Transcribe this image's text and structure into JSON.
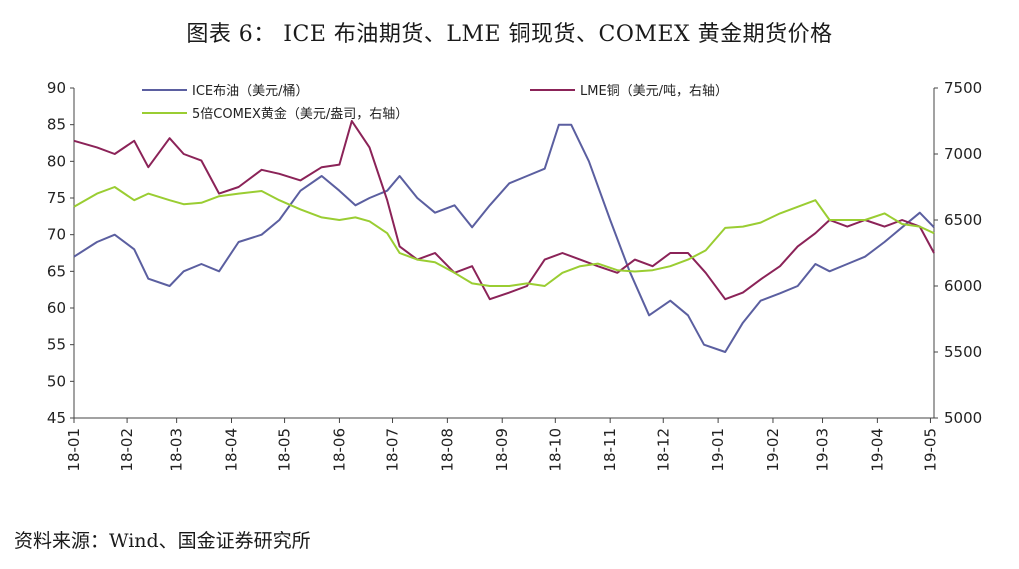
{
  "title": "图表 6：  ICE 布油期货、LME 铜现货、COMEX 黄金期货价格",
  "source": "资料来源：Wind、国金证券研究所",
  "chart_data": {
    "type": "line",
    "x_ticks": [
      "18-01",
      "18-02",
      "18-03",
      "18-04",
      "18-05",
      "18-06",
      "18-07",
      "18-08",
      "18-09",
      "18-10",
      "18-11",
      "18-12",
      "19-01",
      "19-02",
      "19-03",
      "19-04",
      "19-05"
    ],
    "left_axis": {
      "ylim": [
        45,
        90
      ],
      "ticks": [
        45,
        50,
        55,
        60,
        65,
        70,
        75,
        80,
        85,
        90
      ]
    },
    "right_axis": {
      "ylim": [
        5000,
        7500
      ],
      "ticks": [
        5000,
        5500,
        6000,
        6500,
        7000,
        7500
      ]
    },
    "colors": {
      "brent": "#5b5fa0",
      "copper": "#8b2358",
      "gold": "#9acd32"
    },
    "legend_placement": "top",
    "series": [
      {
        "name": "ICE布油（美元/桶）",
        "axis": "left",
        "color": "#5b5fa0",
        "x": [
          "2018-01-02",
          "2018-01-15",
          "2018-01-25",
          "2018-02-05",
          "2018-02-13",
          "2018-02-25",
          "2018-03-05",
          "2018-03-15",
          "2018-03-25",
          "2018-04-05",
          "2018-04-18",
          "2018-04-28",
          "2018-05-10",
          "2018-05-22",
          "2018-06-01",
          "2018-06-10",
          "2018-06-18",
          "2018-06-28",
          "2018-07-05",
          "2018-07-15",
          "2018-07-25",
          "2018-08-05",
          "2018-08-15",
          "2018-08-25",
          "2018-09-05",
          "2018-09-15",
          "2018-09-25",
          "2018-10-03",
          "2018-10-10",
          "2018-10-20",
          "2018-11-01",
          "2018-11-12",
          "2018-11-23",
          "2018-12-05",
          "2018-12-15",
          "2018-12-24",
          "2019-01-05",
          "2019-01-15",
          "2019-01-25",
          "2019-02-05",
          "2019-02-15",
          "2019-02-25",
          "2019-03-05",
          "2019-03-15",
          "2019-03-25",
          "2019-04-05",
          "2019-04-15",
          "2019-04-25",
          "2019-05-03"
        ],
        "values": [
          67,
          69,
          70,
          68,
          64,
          63,
          65,
          66,
          65,
          69,
          70,
          72,
          76,
          78,
          76,
          74,
          75,
          76,
          78,
          75,
          73,
          74,
          71,
          74,
          77,
          78,
          79,
          85,
          85,
          80,
          72,
          65,
          59,
          61,
          59,
          55,
          54,
          58,
          61,
          62,
          63,
          66,
          65,
          66,
          67,
          69,
          71,
          73,
          71
        ]
      },
      {
        "name": "LME铜（美元/吨，右轴）",
        "axis": "right",
        "color": "#8b2358",
        "x": [
          "2018-01-02",
          "2018-01-15",
          "2018-01-25",
          "2018-02-05",
          "2018-02-13",
          "2018-02-25",
          "2018-03-05",
          "2018-03-15",
          "2018-03-25",
          "2018-04-05",
          "2018-04-18",
          "2018-04-28",
          "2018-05-10",
          "2018-05-22",
          "2018-06-01",
          "2018-06-08",
          "2018-06-18",
          "2018-06-28",
          "2018-07-05",
          "2018-07-15",
          "2018-07-25",
          "2018-08-05",
          "2018-08-15",
          "2018-08-25",
          "2018-09-05",
          "2018-09-15",
          "2018-09-25",
          "2018-10-05",
          "2018-10-15",
          "2018-10-25",
          "2018-11-05",
          "2018-11-15",
          "2018-11-25",
          "2018-12-05",
          "2018-12-15",
          "2018-12-25",
          "2019-01-05",
          "2019-01-15",
          "2019-01-25",
          "2019-02-05",
          "2019-02-15",
          "2019-02-25",
          "2019-03-05",
          "2019-03-15",
          "2019-03-25",
          "2019-04-05",
          "2019-04-15",
          "2019-04-25",
          "2019-05-03"
        ],
        "values": [
          7100,
          7050,
          7000,
          7100,
          6900,
          7120,
          7000,
          6950,
          6700,
          6750,
          6880,
          6850,
          6800,
          6900,
          6920,
          7250,
          7050,
          6650,
          6300,
          6200,
          6250,
          6100,
          6150,
          5900,
          5950,
          6000,
          6200,
          6250,
          6200,
          6150,
          6100,
          6200,
          6150,
          6250,
          6250,
          6100,
          5900,
          5950,
          6050,
          6150,
          6300,
          6400,
          6500,
          6450,
          6500,
          6450,
          6500,
          6450,
          6250
        ]
      },
      {
        "name": "5倍COMEX黄金（美元/盎司，右轴）",
        "axis": "right",
        "color": "#9acd32",
        "x": [
          "2018-01-02",
          "2018-01-15",
          "2018-01-25",
          "2018-02-05",
          "2018-02-13",
          "2018-02-25",
          "2018-03-05",
          "2018-03-15",
          "2018-03-25",
          "2018-04-05",
          "2018-04-18",
          "2018-04-28",
          "2018-05-10",
          "2018-05-22",
          "2018-06-01",
          "2018-06-10",
          "2018-06-18",
          "2018-06-28",
          "2018-07-05",
          "2018-07-15",
          "2018-07-25",
          "2018-08-05",
          "2018-08-15",
          "2018-08-25",
          "2018-09-05",
          "2018-09-15",
          "2018-09-25",
          "2018-10-05",
          "2018-10-15",
          "2018-10-25",
          "2018-11-05",
          "2018-11-15",
          "2018-11-25",
          "2018-12-05",
          "2018-12-15",
          "2018-12-25",
          "2019-01-05",
          "2019-01-15",
          "2019-01-25",
          "2019-02-05",
          "2019-02-15",
          "2019-02-25",
          "2019-03-05",
          "2019-03-15",
          "2019-03-25",
          "2019-04-05",
          "2019-04-15",
          "2019-04-25",
          "2019-05-03"
        ],
        "values": [
          6600,
          6700,
          6750,
          6650,
          6700,
          6650,
          6620,
          6630,
          6680,
          6700,
          6720,
          6650,
          6580,
          6520,
          6500,
          6520,
          6490,
          6400,
          6250,
          6200,
          6180,
          6100,
          6020,
          6000,
          6000,
          6020,
          6000,
          6100,
          6150,
          6170,
          6120,
          6110,
          6120,
          6150,
          6200,
          6270,
          6440,
          6450,
          6480,
          6550,
          6600,
          6650,
          6500,
          6500,
          6500,
          6550,
          6470,
          6450,
          6400
        ]
      }
    ]
  }
}
